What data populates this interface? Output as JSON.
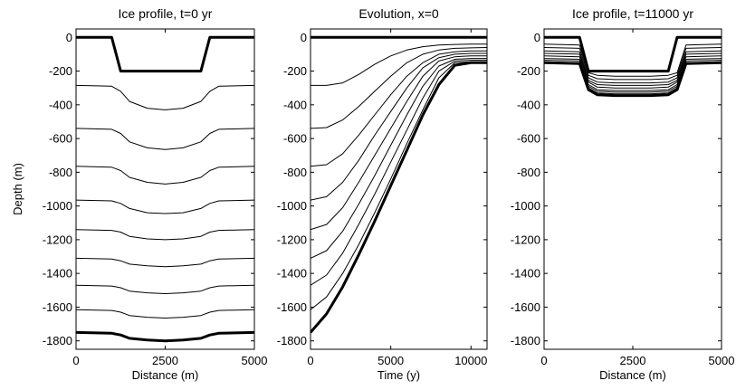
{
  "chart_data": [
    {
      "type": "line",
      "title": "Ice profile, t=0 yr",
      "xlabel": "Distance (m)",
      "ylabel": "Depth (m)",
      "xlim": [
        0,
        5000
      ],
      "ylim": [
        -1850,
        50
      ],
      "xticks": [
        0,
        2500,
        5000
      ],
      "yticks": [
        0,
        -200,
        -400,
        -600,
        -800,
        -1000,
        -1200,
        -1400,
        -1600,
        -1800
      ],
      "x": [
        0,
        1000,
        1250,
        1500,
        2000,
        2500,
        3000,
        3500,
        3750,
        4000,
        5000
      ],
      "series": [
        {
          "values": [
            0,
            0,
            -200,
            -200,
            -200,
            -200,
            -200,
            -200,
            0,
            0,
            0
          ]
        },
        {
          "values": [
            -285,
            -290,
            -320,
            -380,
            -420,
            -430,
            -420,
            -380,
            -320,
            -290,
            -285
          ]
        },
        {
          "values": [
            -540,
            -545,
            -570,
            -620,
            -655,
            -665,
            -655,
            -620,
            -570,
            -545,
            -540
          ]
        },
        {
          "values": [
            -765,
            -770,
            -790,
            -830,
            -860,
            -870,
            -860,
            -830,
            -790,
            -770,
            -765
          ]
        },
        {
          "values": [
            -965,
            -970,
            -985,
            -1015,
            -1040,
            -1045,
            -1040,
            -1015,
            -985,
            -970,
            -965
          ]
        },
        {
          "values": [
            -1140,
            -1145,
            -1155,
            -1180,
            -1195,
            -1200,
            -1195,
            -1180,
            -1155,
            -1145,
            -1140
          ]
        },
        {
          "values": [
            -1310,
            -1315,
            -1325,
            -1345,
            -1355,
            -1360,
            -1355,
            -1345,
            -1325,
            -1315,
            -1310
          ]
        },
        {
          "values": [
            -1470,
            -1475,
            -1485,
            -1505,
            -1515,
            -1520,
            -1515,
            -1505,
            -1485,
            -1475,
            -1470
          ]
        },
        {
          "values": [
            -1615,
            -1620,
            -1630,
            -1650,
            -1660,
            -1665,
            -1660,
            -1650,
            -1630,
            -1620,
            -1615
          ]
        },
        {
          "values": [
            -1750,
            -1755,
            -1765,
            -1785,
            -1795,
            -1800,
            -1795,
            -1785,
            -1765,
            -1755,
            -1750
          ]
        }
      ]
    },
    {
      "type": "line",
      "title": "Evolution, x=0",
      "xlabel": "Time (y)",
      "ylabel": "",
      "xlim": [
        0,
        11000
      ],
      "ylim": [
        -1850,
        50
      ],
      "xticks": [
        0,
        5000,
        10000
      ],
      "yticks": [
        0,
        -200,
        -400,
        -600,
        -800,
        -1000,
        -1200,
        -1400,
        -1600,
        -1800
      ],
      "x": [
        0,
        1000,
        2000,
        3000,
        4000,
        5000,
        6000,
        7000,
        8000,
        9000,
        10000,
        11000
      ],
      "series": [
        {
          "values": [
            0,
            0,
            0,
            0,
            0,
            0,
            0,
            0,
            0,
            0,
            0,
            0
          ]
        },
        {
          "values": [
            -285,
            -285,
            -270,
            -220,
            -160,
            -110,
            -75,
            -55,
            -45,
            -42,
            -40,
            -40
          ]
        },
        {
          "values": [
            -540,
            -535,
            -490,
            -410,
            -320,
            -230,
            -150,
            -100,
            -75,
            -65,
            -62,
            -60
          ]
        },
        {
          "values": [
            -765,
            -755,
            -690,
            -580,
            -460,
            -340,
            -230,
            -150,
            -100,
            -85,
            -80,
            -80
          ]
        },
        {
          "values": [
            -965,
            -945,
            -860,
            -730,
            -580,
            -440,
            -300,
            -180,
            -120,
            -100,
            -95,
            -95
          ]
        },
        {
          "values": [
            -1140,
            -1110,
            -1010,
            -860,
            -700,
            -540,
            -380,
            -230,
            -140,
            -115,
            -110,
            -110
          ]
        },
        {
          "values": [
            -1310,
            -1265,
            -1150,
            -990,
            -820,
            -640,
            -460,
            -290,
            -170,
            -130,
            -125,
            -125
          ]
        },
        {
          "values": [
            -1470,
            -1410,
            -1280,
            -1110,
            -930,
            -740,
            -550,
            -360,
            -200,
            -140,
            -135,
            -135
          ]
        },
        {
          "values": [
            -1615,
            -1540,
            -1400,
            -1230,
            -1040,
            -840,
            -630,
            -430,
            -240,
            -150,
            -145,
            -145
          ]
        },
        {
          "values": [
            -1750,
            -1640,
            -1480,
            -1290,
            -1090,
            -880,
            -670,
            -460,
            -280,
            -165,
            -150,
            -150
          ]
        }
      ]
    },
    {
      "type": "line",
      "title": "Ice profile, t=11000 yr",
      "xlabel": "Distance (m)",
      "ylabel": "",
      "xlim": [
        0,
        5000
      ],
      "ylim": [
        -1850,
        50
      ],
      "xticks": [
        0,
        2500,
        5000
      ],
      "yticks": [
        0,
        -200,
        -400,
        -600,
        -800,
        -1000,
        -1200,
        -1400,
        -1600,
        -1800
      ],
      "x": [
        0,
        1000,
        1250,
        1500,
        2000,
        2500,
        3000,
        3500,
        3750,
        4000,
        5000
      ],
      "series": [
        {
          "values": [
            0,
            0,
            -200,
            -200,
            -200,
            -200,
            -200,
            -200,
            0,
            0,
            0
          ]
        },
        {
          "values": [
            -40,
            -45,
            -210,
            -225,
            -230,
            -230,
            -230,
            -225,
            -210,
            -45,
            -40
          ]
        },
        {
          "values": [
            -60,
            -65,
            -225,
            -245,
            -250,
            -250,
            -250,
            -245,
            -225,
            -65,
            -60
          ]
        },
        {
          "values": [
            -80,
            -85,
            -240,
            -265,
            -270,
            -270,
            -270,
            -265,
            -240,
            -85,
            -80
          ]
        },
        {
          "values": [
            -95,
            -100,
            -255,
            -280,
            -285,
            -285,
            -285,
            -280,
            -255,
            -100,
            -95
          ]
        },
        {
          "values": [
            -110,
            -115,
            -265,
            -295,
            -300,
            -300,
            -300,
            -295,
            -265,
            -115,
            -110
          ]
        },
        {
          "values": [
            -125,
            -130,
            -280,
            -310,
            -315,
            -315,
            -315,
            -310,
            -280,
            -130,
            -125
          ]
        },
        {
          "values": [
            -135,
            -140,
            -290,
            -320,
            -325,
            -325,
            -325,
            -320,
            -290,
            -140,
            -135
          ]
        },
        {
          "values": [
            -145,
            -150,
            -300,
            -330,
            -335,
            -335,
            -335,
            -330,
            -300,
            -150,
            -145
          ]
        },
        {
          "values": [
            -150,
            -155,
            -310,
            -340,
            -345,
            -345,
            -345,
            -340,
            -310,
            -155,
            -150
          ]
        }
      ]
    }
  ]
}
